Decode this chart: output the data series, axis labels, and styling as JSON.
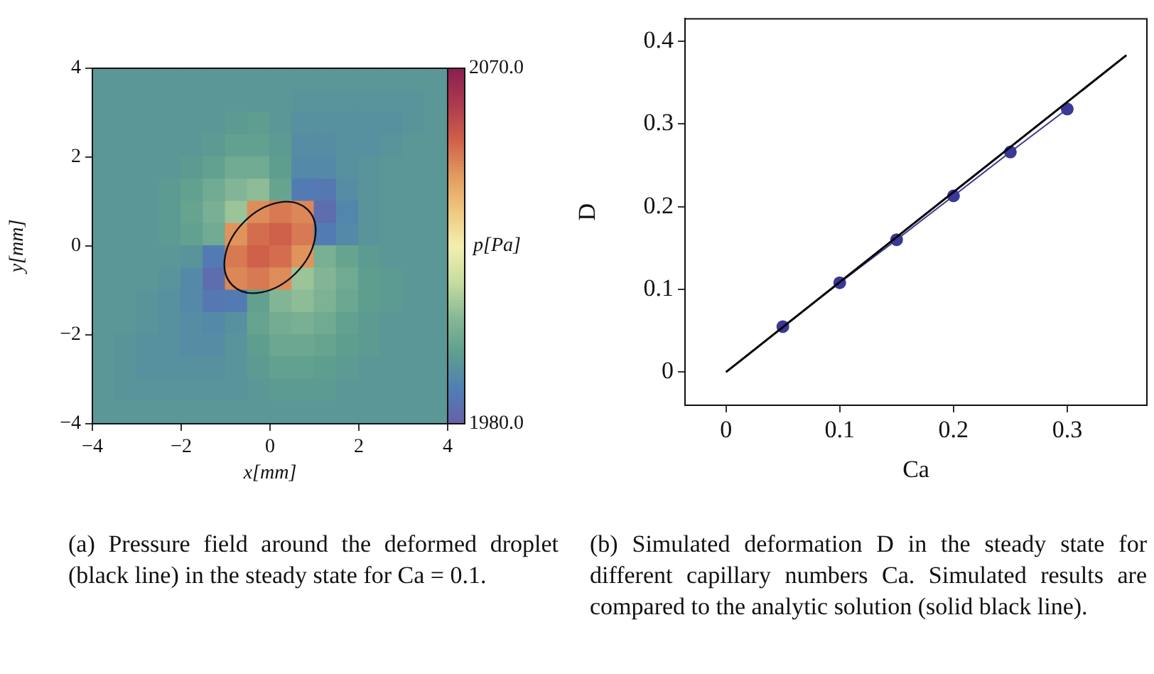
{
  "chart_data": [
    {
      "type": "heatmap",
      "cells": [
        [
          1996,
          1996,
          1996,
          1996,
          1996,
          1996,
          1996,
          1996,
          1996,
          1996,
          1996,
          1996,
          1996,
          1996,
          1996,
          1996
        ],
        [
          1996,
          1996,
          1996,
          1996,
          1996,
          1996,
          1996,
          1996,
          1996,
          1995,
          1995,
          1995,
          1995,
          1995,
          1995,
          1996
        ],
        [
          1996,
          1996,
          1996,
          1996,
          1996,
          1996,
          1997,
          1998,
          1996,
          1994,
          1994,
          1994,
          1994,
          1994,
          1995,
          1996
        ],
        [
          1996,
          1996,
          1996,
          1996,
          1996,
          1997,
          1999,
          1999,
          1997,
          1993,
          1993,
          1994,
          1994,
          1995,
          1996,
          1996
        ],
        [
          1996,
          1996,
          1996,
          1996,
          1997,
          1999,
          2002,
          2002,
          1998,
          1992,
          1992,
          1994,
          1995,
          1996,
          1996,
          1996
        ],
        [
          1996,
          1996,
          1996,
          1997,
          1999,
          2002,
          2006,
          2008,
          2000,
          1988,
          1987,
          1993,
          1995,
          1996,
          1996,
          1996
        ],
        [
          1996,
          1996,
          1996,
          1997,
          2000,
          2004,
          2010,
          2045,
          2048,
          2046,
          1984,
          1991,
          1995,
          1996,
          1996,
          1996
        ],
        [
          1996,
          1996,
          1996,
          1997,
          1999,
          2002,
          2044,
          2050,
          2052,
          2048,
          1988,
          1992,
          1995,
          1996,
          1996,
          1996
        ],
        [
          1996,
          1996,
          1996,
          1996,
          1995,
          1988,
          2048,
          2052,
          2050,
          2044,
          2004,
          2000,
          1997,
          1996,
          1996,
          1996
        ],
        [
          1996,
          1996,
          1996,
          1995,
          1992,
          1984,
          2046,
          2048,
          2045,
          2010,
          2006,
          2002,
          1998,
          1997,
          1996,
          1996
        ],
        [
          1996,
          1996,
          1995,
          1994,
          1992,
          1987,
          1988,
          1999,
          2006,
          2008,
          2005,
          2001,
          1998,
          1997,
          1996,
          1996
        ],
        [
          1996,
          1996,
          1995,
          1994,
          1993,
          1992,
          1994,
          2000,
          2003,
          2004,
          2002,
          1999,
          1997,
          1996,
          1996,
          1996
        ],
        [
          1996,
          1995,
          1994,
          1994,
          1993,
          1993,
          1995,
          1998,
          2001,
          2001,
          2000,
          1998,
          1997,
          1996,
          1996,
          1996
        ],
        [
          1996,
          1995,
          1994,
          1994,
          1994,
          1994,
          1995,
          1997,
          1999,
          1999,
          1998,
          1997,
          1996,
          1996,
          1996,
          1996
        ],
        [
          1996,
          1995,
          1995,
          1995,
          1995,
          1995,
          1995,
          1996,
          1997,
          1997,
          1997,
          1996,
          1996,
          1996,
          1996,
          1996
        ],
        [
          1996,
          1996,
          1996,
          1996,
          1996,
          1996,
          1996,
          1996,
          1996,
          1996,
          1996,
          1996,
          1996,
          1996,
          1996,
          1996
        ]
      ],
      "xlim": [
        -4,
        4
      ],
      "ylim": [
        -4,
        4
      ],
      "xticks": [
        -4,
        -2,
        0,
        2,
        4
      ],
      "yticks": [
        -4,
        -2,
        0,
        2,
        4
      ],
      "xlabel": "x[mm]",
      "ylabel": "y[mm]",
      "clabel": "p[Pa]",
      "clim": [
        1980,
        2070
      ],
      "cticks": [
        {
          "value": 1980,
          "label": "1980.0"
        },
        {
          "value": 2070,
          "label": "2070.0"
        }
      ],
      "annotations": [
        "(a) Pressure field around the deformed droplet (black line) in the steady state for Ca = 0.1."
      ]
    },
    {
      "type": "line",
      "series": [
        {
          "type": "line",
          "color": "#000000",
          "x": [
            0,
            0.352
          ],
          "values": [
            0,
            0.383
          ],
          "marker": "none"
        },
        {
          "type": "line",
          "color": "#3b3896",
          "x": [
            0.05,
            0.1,
            0.15,
            0.2,
            0.25,
            0.3
          ],
          "values": [
            0.055,
            0.108,
            0.16,
            0.213,
            0.266,
            0.318
          ],
          "marker": "circle"
        }
      ],
      "xlim": [
        -0.036,
        0.37
      ],
      "ylim": [
        -0.04,
        0.427
      ],
      "xticks": [
        0,
        0.1,
        0.2,
        0.3
      ],
      "yticks": [
        0,
        0.1,
        0.2,
        0.3,
        0.4
      ],
      "xlabel": "Ca",
      "ylabel": "D",
      "grid": false,
      "legend": false,
      "annotations": [
        "(b) Simulated deformation D in the steady state for different capillary numbers Ca. Simulated results are compared to the analytic solution (solid black line)."
      ]
    }
  ]
}
